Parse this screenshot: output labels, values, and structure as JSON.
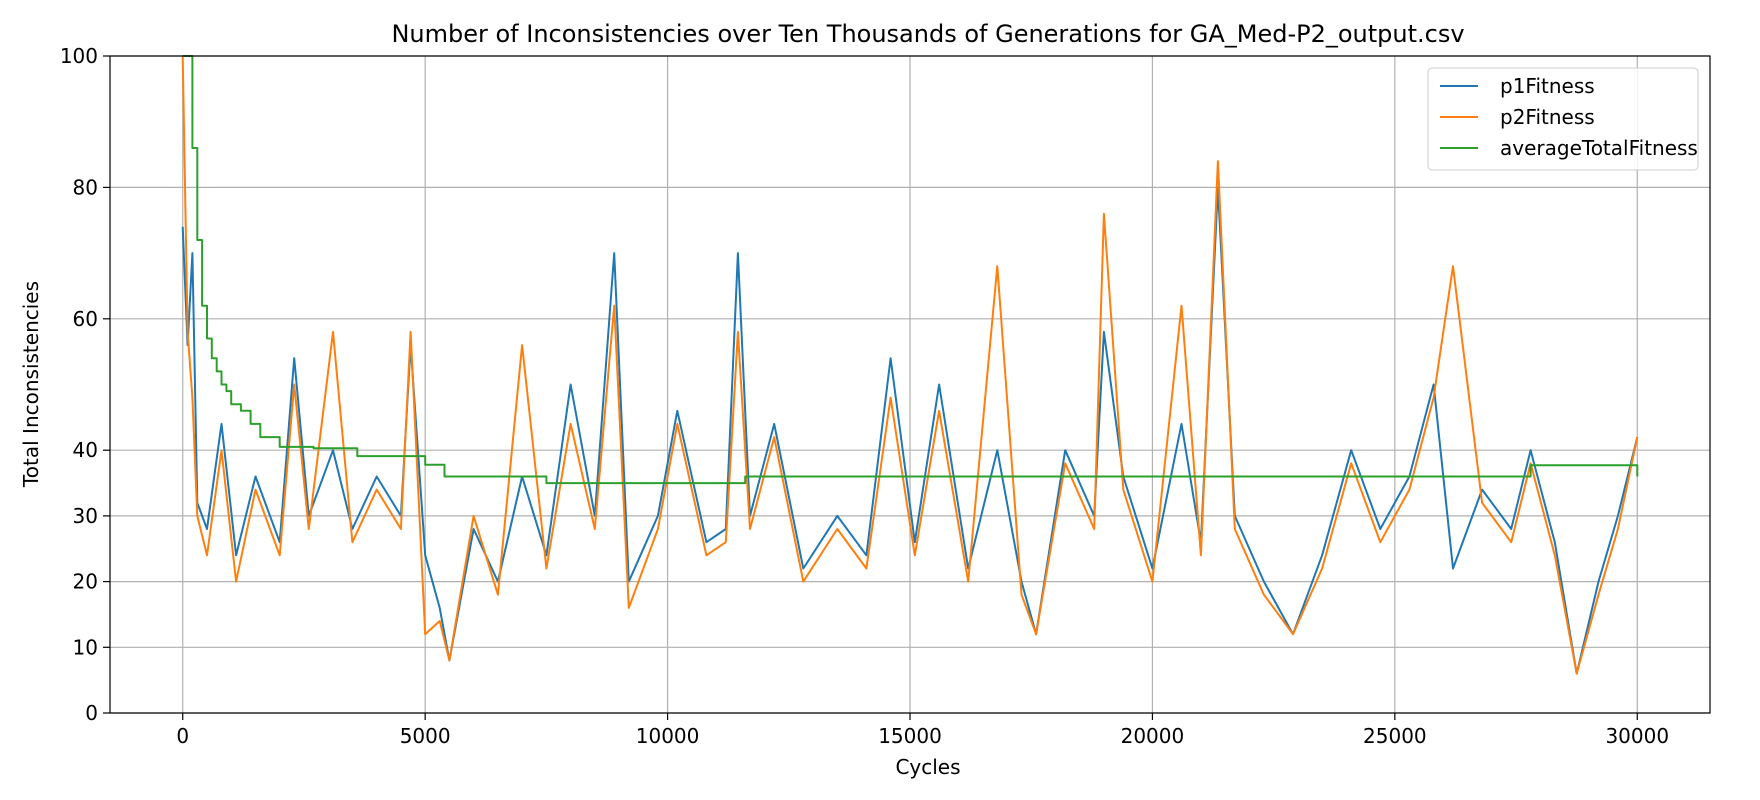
{
  "chart_data": {
    "type": "line",
    "title": "Number of Inconsistencies over Ten Thousands of Generations for GA_Med-P2_output.csv",
    "xlabel": "Cycles",
    "ylabel": "Total Inconsistencies",
    "xlim": [
      -1500,
      31500
    ],
    "ylim": [
      0,
      100
    ],
    "x_ticks": [
      0,
      5000,
      10000,
      15000,
      20000,
      25000,
      30000
    ],
    "y_ticks": [
      0,
      10,
      20,
      30,
      40,
      60,
      80,
      100
    ],
    "grid": true,
    "legend_position": "top-right",
    "series": [
      {
        "name": "p1Fitness",
        "color": "#1f77b4",
        "x": [
          0,
          100,
          200,
          300,
          500,
          800,
          1100,
          1500,
          2000,
          2300,
          2600,
          3100,
          3500,
          4000,
          4500,
          4700,
          5000,
          5300,
          5500,
          6000,
          6500,
          7000,
          7500,
          8000,
          8500,
          8900,
          9200,
          9800,
          10200,
          10800,
          11200,
          11450,
          11700,
          12200,
          12800,
          13500,
          14100,
          14600,
          15100,
          15600,
          16200,
          16800,
          17300,
          17600,
          18200,
          18800,
          19000,
          19400,
          20000,
          20600,
          21000,
          21350,
          21700,
          22300,
          22900,
          23500,
          24100,
          24700,
          25300,
          25800,
          26200,
          26800,
          27400,
          27800,
          28300,
          28750,
          29200,
          29600,
          30000
        ],
        "y": [
          74,
          56,
          70,
          32,
          28,
          44,
          24,
          36,
          26,
          54,
          30,
          40,
          28,
          36,
          30,
          56,
          24,
          16,
          8,
          28,
          20,
          36,
          24,
          50,
          30,
          70,
          20,
          30,
          46,
          26,
          28,
          70,
          30,
          44,
          22,
          30,
          24,
          54,
          26,
          50,
          22,
          40,
          20,
          12,
          40,
          30,
          58,
          36,
          22,
          44,
          26,
          80,
          30,
          20,
          12,
          24,
          40,
          28,
          36,
          50,
          22,
          34,
          28,
          40,
          26,
          6,
          20,
          30,
          42
        ]
      },
      {
        "name": "p2Fitness",
        "color": "#ff7f0e",
        "x": [
          0,
          100,
          200,
          300,
          500,
          800,
          1100,
          1500,
          2000,
          2300,
          2600,
          3100,
          3500,
          4000,
          4500,
          4700,
          5000,
          5300,
          5500,
          6000,
          6500,
          7000,
          7500,
          8000,
          8500,
          8900,
          9200,
          9800,
          10200,
          10800,
          11200,
          11450,
          11700,
          12200,
          12800,
          13500,
          14100,
          14600,
          15100,
          15600,
          16200,
          16800,
          17300,
          17600,
          18200,
          18800,
          19000,
          19400,
          20000,
          20600,
          21000,
          21350,
          21700,
          22300,
          22900,
          23500,
          24100,
          24700,
          25300,
          25800,
          26200,
          26800,
          27400,
          27800,
          28300,
          28750,
          29200,
          29600,
          30000
        ],
        "y": [
          100,
          58,
          48,
          30,
          24,
          40,
          20,
          34,
          24,
          50,
          28,
          58,
          26,
          34,
          28,
          58,
          12,
          14,
          8,
          30,
          18,
          56,
          22,
          44,
          28,
          62,
          16,
          28,
          44,
          24,
          26,
          58,
          28,
          42,
          20,
          28,
          22,
          48,
          24,
          46,
          20,
          68,
          18,
          12,
          38,
          28,
          76,
          34,
          20,
          62,
          24,
          84,
          28,
          18,
          12,
          22,
          38,
          26,
          34,
          48,
          68,
          32,
          26,
          38,
          24,
          6,
          18,
          28,
          42
        ]
      },
      {
        "name": "averageTotalFitness",
        "color": "#2ca02c",
        "x": [
          0,
          150,
          200,
          300,
          400,
          500,
          600,
          700,
          800,
          900,
          1000,
          1200,
          1400,
          1600,
          2000,
          2700,
          3600,
          5000,
          5400,
          7500,
          11600,
          27600,
          27800,
          30000
        ],
        "y": [
          100,
          100,
          86,
          72,
          62,
          57,
          54,
          52,
          50,
          49,
          47,
          46,
          44,
          42,
          40.5,
          40.3,
          39.1,
          37.8,
          36,
          35,
          36,
          36,
          37.7,
          36
        ]
      }
    ]
  }
}
